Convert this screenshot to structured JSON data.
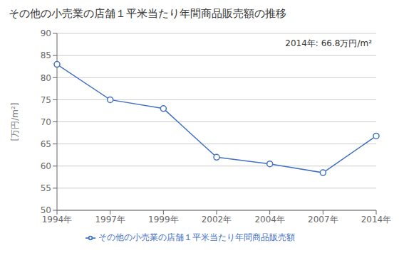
{
  "chart_data": {
    "type": "line",
    "title": "その他の小売業の店舗１平米当たり年間商品販売額の推移",
    "y_label": "[万円/m²]",
    "categories": [
      "1994年",
      "1997年",
      "1999年",
      "2002年",
      "2004年",
      "2007年",
      "2014年"
    ],
    "series": [
      {
        "name": "その他の小売業の店舗１平米当たり年間商品販売額",
        "color": "#4472C4",
        "marker": "circle",
        "values": [
          83.0,
          75.0,
          73.0,
          62.0,
          60.5,
          58.5,
          66.8
        ]
      }
    ],
    "ylim": [
      50,
      90
    ],
    "yticks": [
      50,
      55,
      60,
      65,
      70,
      75,
      80,
      85,
      90
    ],
    "grid": true,
    "legend": "bottom",
    "annotation": "2014年: 66.8万円/m²"
  }
}
